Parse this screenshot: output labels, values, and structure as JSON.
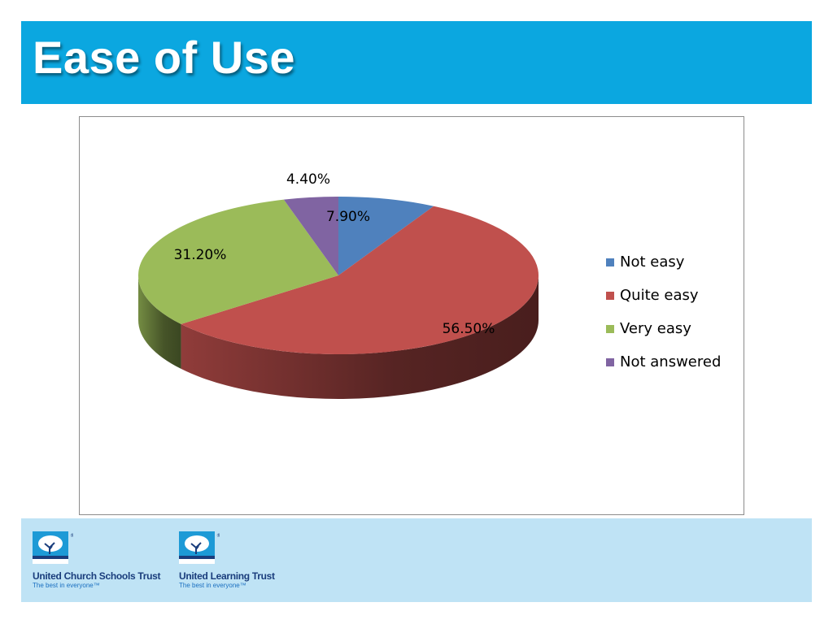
{
  "title": "Ease of Use",
  "chart_data": {
    "type": "pie",
    "title": "",
    "legend_position": "right",
    "three_d": true,
    "categories": [
      "Not easy",
      "Quite easy",
      "Very easy",
      "Not answered"
    ],
    "values": [
      7.9,
      56.5,
      31.2,
      4.4
    ],
    "labels": [
      "7.90%",
      "56.50%",
      "31.20%",
      "4.40%"
    ],
    "colors": [
      "#4f81bd",
      "#c0504d",
      "#9bbb59",
      "#8064a2"
    ]
  },
  "footer": {
    "logos": [
      {
        "name": "United Church Schools Trust",
        "tagline": "The best in everyone™"
      },
      {
        "name": "United Learning Trust",
        "tagline": "The best in everyone™"
      }
    ]
  }
}
